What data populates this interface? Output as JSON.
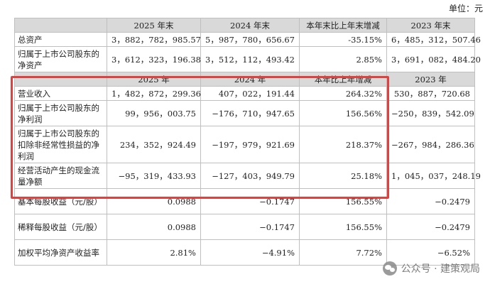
{
  "unit": "单位：元",
  "section1": {
    "headers": [
      "",
      "2025 年末",
      "2024 年末",
      "本年末比上年末增减",
      "2023 年末"
    ],
    "rows": [
      [
        "总资产",
        "3，882，782，985.57",
        "5，987，780，656.67",
        "-35.15%",
        "6，485，312，507.46"
      ],
      [
        "归属于上市公司股东的净资产",
        "3，612，323，196.38",
        "3，512，112，493.42",
        "2.85%",
        "3，691，082，484.20"
      ]
    ]
  },
  "section2": {
    "headers": [
      "",
      "2025 年",
      "2024 年",
      "本年比上年增减",
      "2023 年"
    ],
    "rows": [
      [
        "营业收入",
        "1，482，872，299.36",
        "407，022，191.44",
        "264.32%",
        "530，887，720.68"
      ],
      [
        "归属于上市公司股东的净利润",
        "99，956，003.75",
        "−176，710，947.65",
        "156.56%",
        "−250，839，542.09"
      ],
      [
        "归属于上市公司股东的扣除非经常性损益的净利润",
        "234，352，924.49",
        "−197，979，921.69",
        "218.37%",
        "−267，984，286.36"
      ],
      [
        "经营活动产生的现金流量净额",
        "−95，319，433.93",
        "−127，403，949.79",
        "25.18%",
        "1，045，037，248.19"
      ],
      [
        "基本每股收益（元/股）",
        "0.0988",
        "−0.1747",
        "156.55%",
        "−0.2479"
      ],
      [
        "稀释每股收益（元/股）",
        "0.0988",
        "−0.1747",
        "156.55%",
        "−0.2479"
      ],
      [
        "加权平均净资产收益率",
        "2.81%",
        "−4.91%",
        "7.72%",
        "−6.52%"
      ]
    ]
  },
  "watermark": {
    "text": "公众号 · 建策观局",
    "icon": "wechat-icon"
  }
}
